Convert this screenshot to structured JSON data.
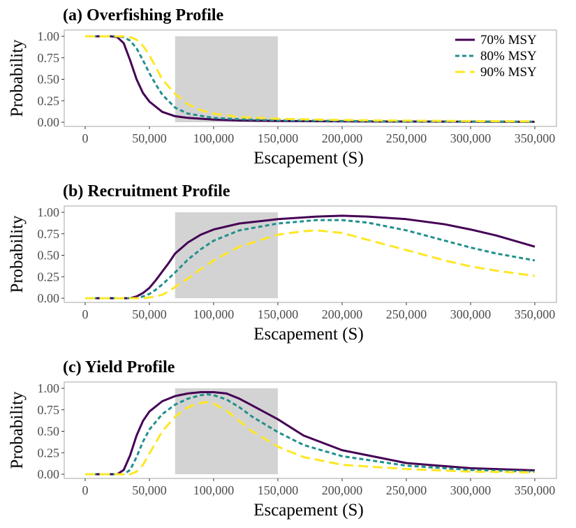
{
  "chart_data": [
    {
      "type": "line",
      "title": "(a) Overfishing Profile",
      "xlabel": "Escapement (S)",
      "ylabel": "Probability",
      "xlim": [
        0,
        350000
      ],
      "ylim": [
        0,
        1
      ],
      "xticks": [
        0,
        50000,
        100000,
        150000,
        200000,
        250000,
        300000,
        350000
      ],
      "xtick_labels": [
        "0",
        "50,000",
        "100,000",
        "150,000",
        "200,000",
        "250,000",
        "300,000",
        "350,000"
      ],
      "yticks": [
        0,
        0.25,
        0.5,
        0.75,
        1.0
      ],
      "ytick_labels": [
        "0.00",
        "0.25",
        "0.50",
        "0.75",
        "1.00"
      ],
      "shaded_region": {
        "x": [
          70000,
          150000
        ],
        "y": [
          0,
          1
        ],
        "color": "#d3d3d3"
      },
      "legend": {
        "position": "top-right"
      },
      "series": [
        {
          "name": "70% MSY",
          "color": "#440154",
          "dash": "solid",
          "x": [
            0,
            20000,
            25000,
            30000,
            35000,
            40000,
            45000,
            50000,
            60000,
            70000,
            80000,
            100000,
            120000,
            150000,
            200000,
            250000,
            300000,
            350000
          ],
          "y": [
            1.0,
            1.0,
            0.99,
            0.92,
            0.72,
            0.5,
            0.34,
            0.24,
            0.12,
            0.07,
            0.05,
            0.03,
            0.02,
            0.015,
            0.01,
            0.008,
            0.006,
            0.005
          ]
        },
        {
          "name": "80% MSY",
          "color": "#21908c",
          "dash": "short",
          "x": [
            0,
            25000,
            30000,
            35000,
            40000,
            45000,
            50000,
            55000,
            60000,
            70000,
            80000,
            100000,
            120000,
            150000,
            200000,
            250000,
            300000,
            350000
          ],
          "y": [
            1.0,
            1.0,
            0.99,
            0.95,
            0.86,
            0.72,
            0.57,
            0.44,
            0.32,
            0.17,
            0.1,
            0.05,
            0.035,
            0.022,
            0.015,
            0.01,
            0.008,
            0.006
          ]
        },
        {
          "name": "90% MSY",
          "color": "#fde725",
          "dash": "long",
          "x": [
            0,
            30000,
            35000,
            40000,
            45000,
            50000,
            55000,
            60000,
            70000,
            80000,
            90000,
            100000,
            120000,
            150000,
            200000,
            250000,
            300000,
            350000
          ],
          "y": [
            1.0,
            1.0,
            0.99,
            0.96,
            0.89,
            0.78,
            0.64,
            0.5,
            0.33,
            0.21,
            0.14,
            0.1,
            0.06,
            0.04,
            0.025,
            0.018,
            0.013,
            0.01
          ]
        }
      ]
    },
    {
      "type": "line",
      "title": "(b) Recruitment Profile",
      "xlabel": "Escapement (S)",
      "ylabel": "Probability",
      "xlim": [
        0,
        350000
      ],
      "ylim": [
        0,
        1
      ],
      "xticks": [
        0,
        50000,
        100000,
        150000,
        200000,
        250000,
        300000,
        350000
      ],
      "xtick_labels": [
        "0",
        "50,000",
        "100,000",
        "150,000",
        "200,000",
        "250,000",
        "300,000",
        "350,000"
      ],
      "yticks": [
        0,
        0.25,
        0.5,
        0.75,
        1.0
      ],
      "ytick_labels": [
        "0.00",
        "0.25",
        "0.50",
        "0.75",
        "1.00"
      ],
      "shaded_region": {
        "x": [
          70000,
          150000
        ],
        "y": [
          0,
          1
        ],
        "color": "#d3d3d3"
      },
      "series": [
        {
          "name": "70% MSY",
          "color": "#440154",
          "dash": "solid",
          "x": [
            0,
            35000,
            40000,
            45000,
            50000,
            55000,
            60000,
            65000,
            70000,
            80000,
            90000,
            100000,
            120000,
            150000,
            180000,
            200000,
            220000,
            250000,
            280000,
            300000,
            320000,
            350000
          ],
          "y": [
            0,
            0,
            0.02,
            0.06,
            0.12,
            0.21,
            0.31,
            0.41,
            0.52,
            0.65,
            0.74,
            0.8,
            0.87,
            0.92,
            0.95,
            0.96,
            0.95,
            0.92,
            0.86,
            0.8,
            0.73,
            0.6
          ]
        },
        {
          "name": "80% MSY",
          "color": "#21908c",
          "dash": "short",
          "x": [
            0,
            40000,
            45000,
            50000,
            55000,
            60000,
            70000,
            80000,
            90000,
            100000,
            120000,
            150000,
            180000,
            200000,
            220000,
            250000,
            280000,
            300000,
            320000,
            350000
          ],
          "y": [
            0,
            0,
            0.02,
            0.05,
            0.1,
            0.16,
            0.3,
            0.45,
            0.57,
            0.67,
            0.79,
            0.87,
            0.91,
            0.91,
            0.88,
            0.79,
            0.67,
            0.59,
            0.52,
            0.44
          ]
        },
        {
          "name": "90% MSY",
          "color": "#fde725",
          "dash": "long",
          "x": [
            0,
            45000,
            55000,
            60000,
            65000,
            70000,
            80000,
            90000,
            100000,
            120000,
            150000,
            170000,
            180000,
            200000,
            220000,
            250000,
            280000,
            300000,
            320000,
            350000
          ],
          "y": [
            0,
            0,
            0.02,
            0.04,
            0.08,
            0.13,
            0.23,
            0.34,
            0.44,
            0.6,
            0.74,
            0.78,
            0.79,
            0.76,
            0.68,
            0.56,
            0.44,
            0.37,
            0.32,
            0.26
          ]
        }
      ]
    },
    {
      "type": "line",
      "title": "(c) Yield Profile",
      "xlabel": "Escapement (S)",
      "ylabel": "Probability",
      "xlim": [
        0,
        350000
      ],
      "ylim": [
        0,
        1
      ],
      "xticks": [
        0,
        50000,
        100000,
        150000,
        200000,
        250000,
        300000,
        350000
      ],
      "xtick_labels": [
        "0",
        "50,000",
        "100,000",
        "150,000",
        "200,000",
        "250,000",
        "300,000",
        "350,000"
      ],
      "yticks": [
        0,
        0.25,
        0.5,
        0.75,
        1.0
      ],
      "ytick_labels": [
        "0.00",
        "0.25",
        "0.50",
        "0.75",
        "1.00"
      ],
      "shaded_region": {
        "x": [
          70000,
          150000
        ],
        "y": [
          0,
          1
        ],
        "color": "#d3d3d3"
      },
      "series": [
        {
          "name": "70% MSY",
          "color": "#440154",
          "dash": "solid",
          "x": [
            0,
            25000,
            30000,
            35000,
            40000,
            45000,
            50000,
            60000,
            70000,
            80000,
            90000,
            100000,
            110000,
            120000,
            130000,
            140000,
            150000,
            170000,
            200000,
            250000,
            300000,
            350000
          ],
          "y": [
            0,
            0,
            0.05,
            0.22,
            0.45,
            0.62,
            0.73,
            0.85,
            0.91,
            0.94,
            0.955,
            0.955,
            0.94,
            0.88,
            0.8,
            0.72,
            0.64,
            0.45,
            0.28,
            0.13,
            0.07,
            0.045
          ]
        },
        {
          "name": "80% MSY",
          "color": "#21908c",
          "dash": "short",
          "x": [
            0,
            30000,
            35000,
            40000,
            45000,
            50000,
            60000,
            70000,
            80000,
            90000,
            95000,
            100000,
            110000,
            120000,
            130000,
            150000,
            170000,
            200000,
            250000,
            300000,
            350000
          ],
          "y": [
            0,
            0,
            0.05,
            0.2,
            0.38,
            0.52,
            0.7,
            0.81,
            0.88,
            0.92,
            0.93,
            0.92,
            0.87,
            0.78,
            0.67,
            0.49,
            0.34,
            0.21,
            0.1,
            0.05,
            0.03
          ]
        },
        {
          "name": "90% MSY",
          "color": "#fde725",
          "dash": "long",
          "x": [
            0,
            35000,
            40000,
            45000,
            50000,
            55000,
            60000,
            70000,
            80000,
            90000,
            95000,
            100000,
            110000,
            120000,
            130000,
            150000,
            170000,
            200000,
            250000,
            300000,
            350000
          ],
          "y": [
            0,
            0,
            0.03,
            0.11,
            0.24,
            0.37,
            0.5,
            0.67,
            0.78,
            0.83,
            0.84,
            0.82,
            0.74,
            0.62,
            0.5,
            0.32,
            0.2,
            0.11,
            0.06,
            0.03,
            0.02
          ]
        }
      ]
    }
  ]
}
